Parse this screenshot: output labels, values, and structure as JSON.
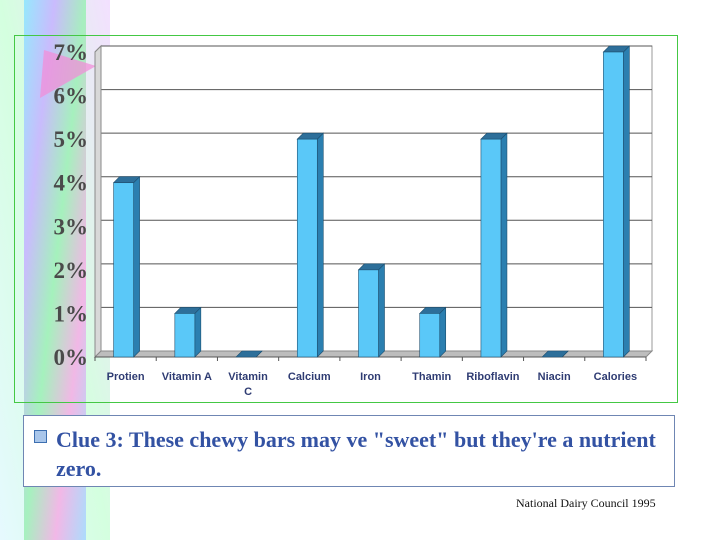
{
  "slide": {
    "clue_text": "Clue 3: These chewy bars may ve \"sweet\" but they're a nutrient zero.",
    "source": "National Dairy Council 1995"
  },
  "colors": {
    "bar_front": "#5ac8f8",
    "bar_side": "#2b7fb0",
    "bar_top": "#2d6f9a",
    "frame": "#44c844",
    "clue_text": "#3352a3",
    "clue_border": "#6f86b3"
  },
  "chart_data": {
    "type": "bar",
    "style": "3d-column",
    "categories": [
      "Protien",
      "Vitamin A",
      "Vitamin C",
      "Calcium",
      "Iron",
      "Thamin",
      "Riboflavin",
      "Niacin",
      "Calories"
    ],
    "category_label_lines": [
      [
        "Protien"
      ],
      [
        "Vitamin A"
      ],
      [
        "Vitamin",
        "C"
      ],
      [
        "Calcium"
      ],
      [
        "Iron"
      ],
      [
        "Thamin"
      ],
      [
        "Riboflavin"
      ],
      [
        "Niacin"
      ],
      [
        "Calories"
      ]
    ],
    "values": [
      4,
      1,
      0,
      5,
      2,
      1,
      5,
      0,
      7
    ],
    "ylim": [
      0,
      7
    ],
    "yticks": [
      "0%",
      "1%",
      "2%",
      "3%",
      "4%",
      "5%",
      "6%",
      "7%"
    ],
    "grid": true,
    "legend": "none"
  }
}
